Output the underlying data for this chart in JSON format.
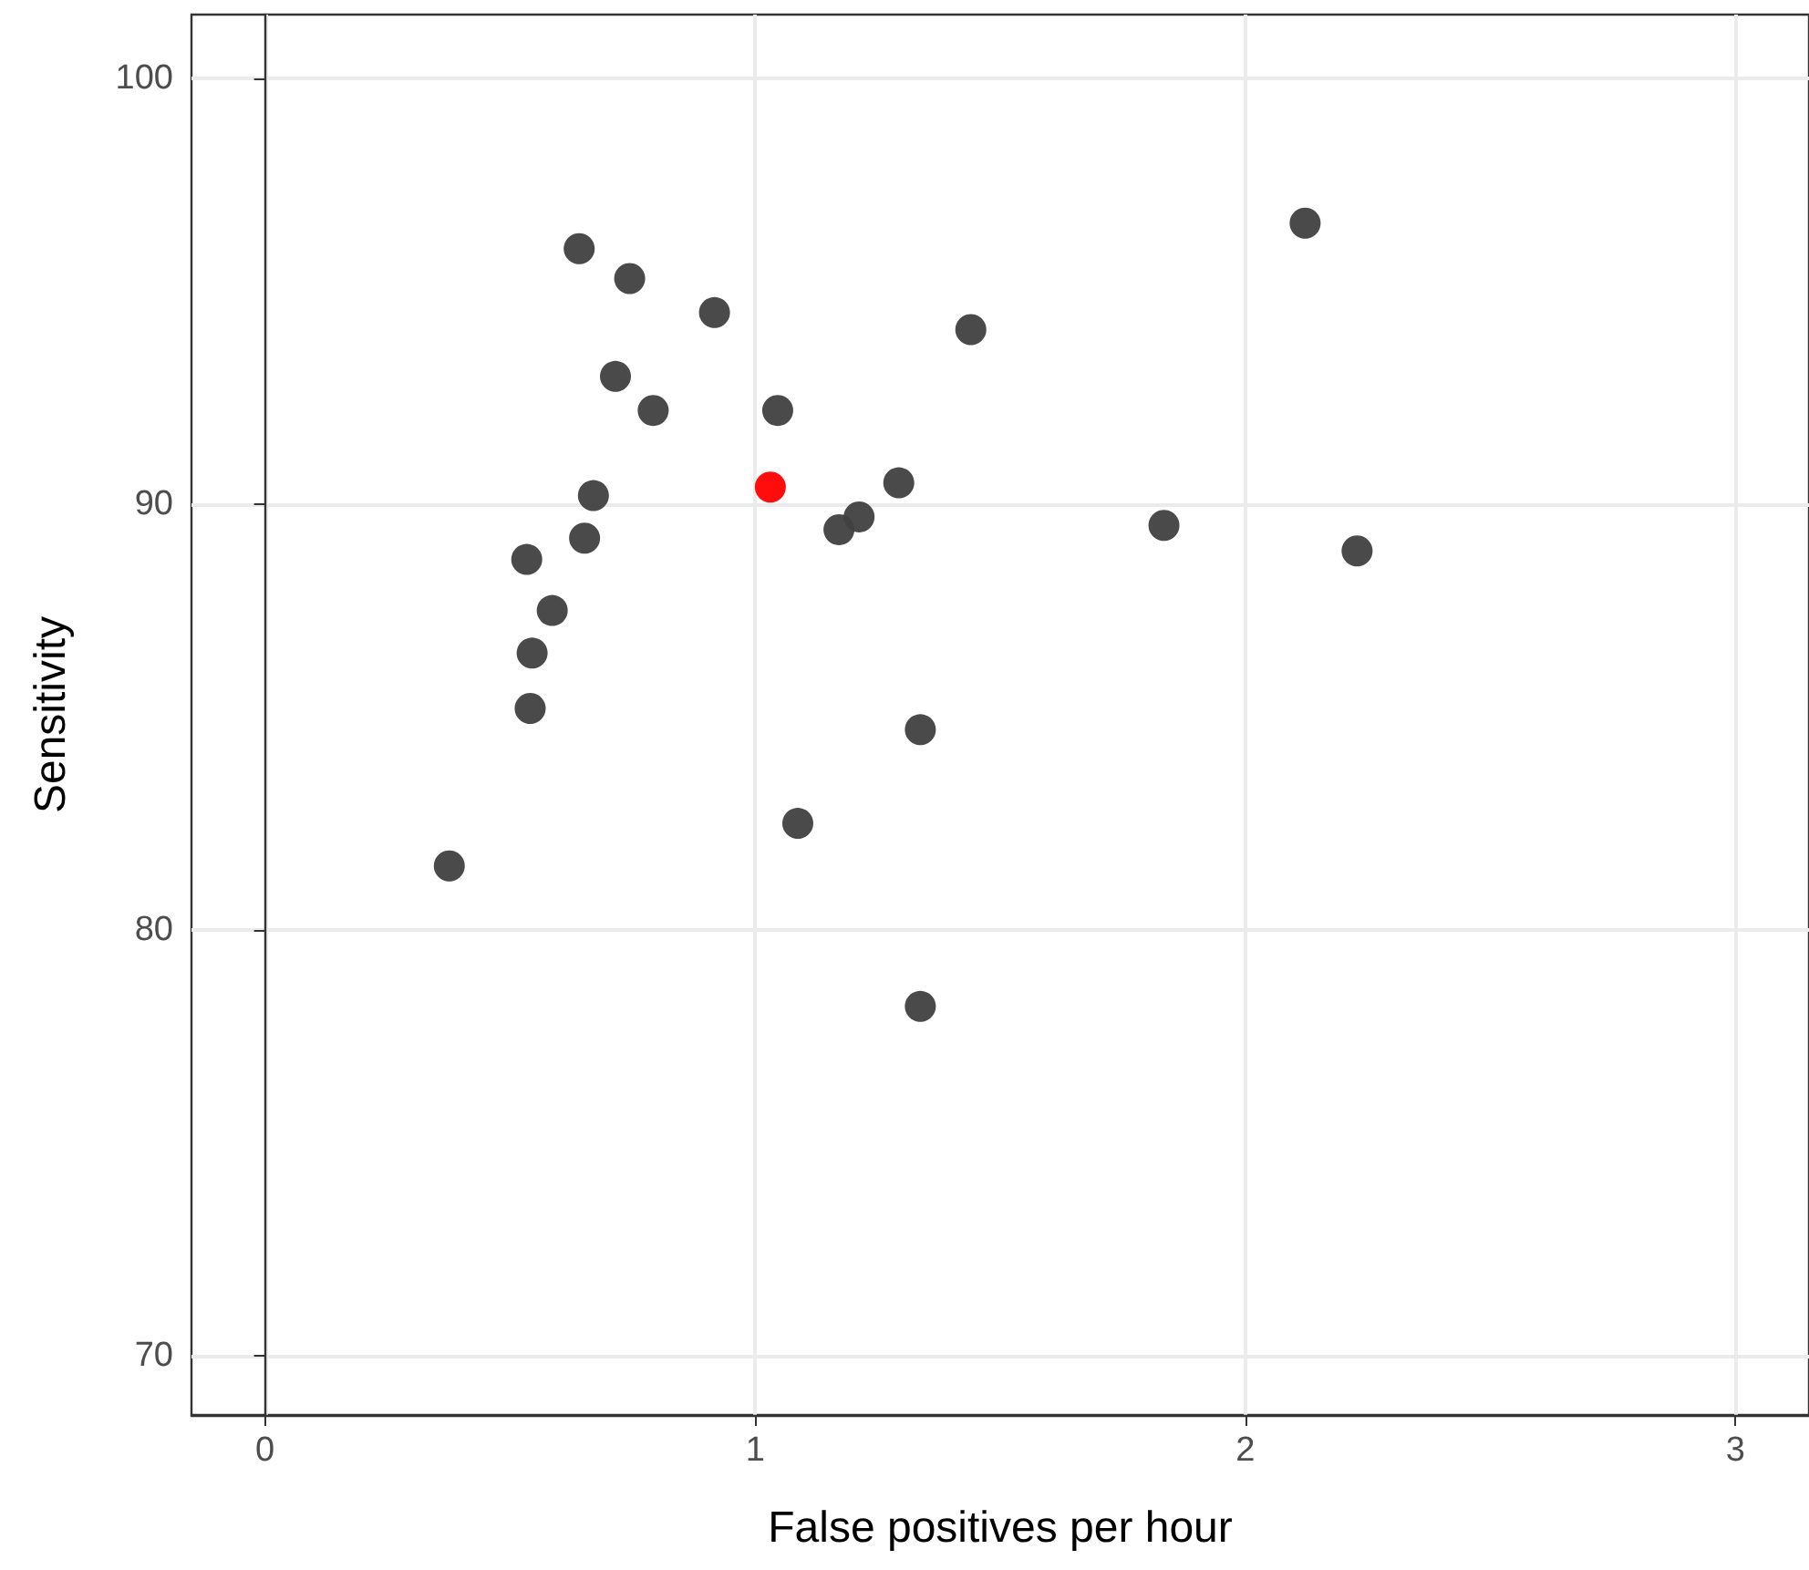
{
  "chart_data": {
    "type": "scatter",
    "xlabel": "False positives per hour",
    "ylabel": "Sensitivity",
    "xlim": [
      -0.15,
      3.15
    ],
    "ylim": [
      68.6,
      101.5
    ],
    "xticks": [
      0,
      1,
      2,
      3
    ],
    "yticks": [
      70,
      80,
      90,
      100
    ],
    "grid": true,
    "marker": "circle",
    "series": [
      {
        "color": "#404040",
        "x": [
          0.641,
          0.744,
          0.917,
          2.122,
          1.44,
          0.715,
          0.792,
          1.046,
          0.67,
          1.293,
          1.212,
          1.171,
          1.834,
          2.228,
          0.534,
          0.652,
          0.586,
          0.545,
          0.541,
          1.337,
          1.087,
          0.376,
          1.337
        ],
        "values": [
          96.0,
          95.3,
          94.5,
          96.6,
          94.1,
          93.0,
          92.2,
          92.2,
          90.2,
          90.5,
          89.7,
          89.4,
          89.5,
          88.9,
          88.7,
          89.2,
          87.5,
          86.5,
          85.2,
          84.7,
          82.5,
          81.5,
          78.2
        ]
      },
      {
        "color": "#ff0000",
        "x": [
          1.031
        ],
        "values": [
          90.4
        ]
      }
    ]
  }
}
